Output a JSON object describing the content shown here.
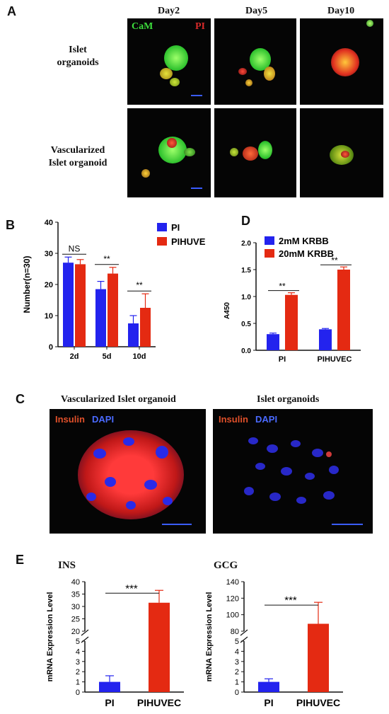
{
  "panel_a": {
    "letter": "A",
    "columns": [
      "Day2",
      "Day5",
      "Day10"
    ],
    "rows": [
      "Islet\norganoids",
      "Vascularized\nIslet organoid"
    ],
    "stain_green": "CaM",
    "stain_red": "PI"
  },
  "panel_b": {
    "letter": "B"
  },
  "panel_c": {
    "letter": "C",
    "left_title": "Vascularized  Islet organoid",
    "right_title": "Islet organoids",
    "stain_red": "Insulin",
    "stain_blue": "DAPI"
  },
  "panel_d": {
    "letter": "D"
  },
  "panel_e": {
    "letter": "E"
  },
  "chart_data": [
    {
      "id": "B",
      "type": "bar",
      "categories": [
        "2d",
        "5d",
        "10d"
      ],
      "ylabel": "Number(n=30)",
      "ylim": [
        0,
        40
      ],
      "yticks": [
        0,
        10,
        20,
        30,
        40
      ],
      "series": [
        {
          "name": "PI",
          "color": "#2323ee",
          "values": [
            27,
            18.5,
            7.5
          ],
          "errors": [
            1.8,
            2.5,
            2.5
          ]
        },
        {
          "name": "PIHUVE",
          "color": "#e42a12",
          "values": [
            26.5,
            23.5,
            12.5
          ],
          "errors": [
            1.5,
            2.0,
            4.5
          ]
        }
      ],
      "annotations": [
        "NS",
        "**",
        "**"
      ],
      "legend": "top-right"
    },
    {
      "id": "D",
      "type": "bar",
      "categories": [
        "PI",
        "PIHUVEC"
      ],
      "ylabel": "A450",
      "ylim": [
        0,
        2.0
      ],
      "yticks": [
        "0.0",
        "0.5",
        "1.0",
        "1.5",
        "2.0"
      ],
      "series": [
        {
          "name": "2mM KRBB",
          "color": "#2323ee",
          "values": [
            0.3,
            0.39
          ],
          "errors": [
            0.02,
            0.015
          ]
        },
        {
          "name": "20mM KRBB",
          "color": "#e42a12",
          "values": [
            1.03,
            1.5
          ],
          "errors": [
            0.04,
            0.05
          ]
        }
      ],
      "annotations": [
        "**",
        "**"
      ],
      "legend": "top-left"
    },
    {
      "id": "E-INS",
      "type": "bar",
      "title": "INS",
      "categories": [
        "PI",
        "PIHUVEC"
      ],
      "ylabel": "mRNA Expression Level",
      "ylim": [
        0,
        40
      ],
      "axis_break": [
        5,
        20
      ],
      "yticks_lower": [
        0,
        1,
        2,
        3,
        4,
        5
      ],
      "yticks_upper": [
        20,
        25,
        30,
        35,
        40
      ],
      "values": [
        1.0,
        31.5
      ],
      "errors": [
        0.6,
        5.0
      ],
      "colors": [
        "#2323ee",
        "#e42a12"
      ],
      "annotations": [
        "***"
      ]
    },
    {
      "id": "E-GCG",
      "type": "bar",
      "title": "GCG",
      "categories": [
        "PI",
        "PIHUVEC"
      ],
      "ylabel": "mRNA Expression Level",
      "ylim": [
        0,
        140
      ],
      "axis_break": [
        5,
        80
      ],
      "yticks_lower": [
        0,
        1,
        2,
        3,
        4,
        5
      ],
      "yticks_upper": [
        80,
        100,
        120,
        140
      ],
      "values": [
        1.0,
        89
      ],
      "errors": [
        0.3,
        26
      ],
      "colors": [
        "#2323ee",
        "#e42a12"
      ],
      "annotations": [
        "***"
      ]
    }
  ]
}
